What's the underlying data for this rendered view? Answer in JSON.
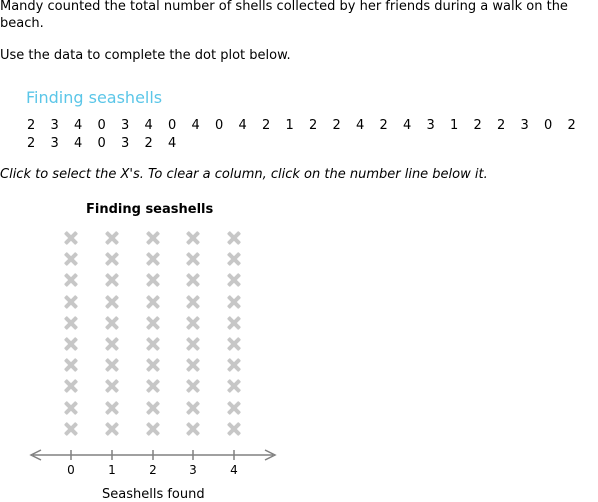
{
  "question": {
    "intro": "Mandy counted the total number of shells collected by her friends during a walk on the beach.",
    "instruction": "Use the data to complete the dot plot below."
  },
  "data_table": {
    "title": "Finding seashells",
    "rows": [
      [
        "2",
        "3",
        "4",
        "0",
        "3",
        "4",
        "0",
        "4",
        "0",
        "4",
        "2",
        "1",
        "2",
        "2",
        "4",
        "2",
        "4",
        "3",
        "1",
        "2",
        "2",
        "3",
        "0",
        "2"
      ],
      [
        "2",
        "3",
        "4",
        "0",
        "3",
        "2",
        "4"
      ]
    ]
  },
  "hint": "Click to select the X's. To clear a column, click on the number line below it.",
  "dot_plot": {
    "title": "Finding seashells",
    "axis_label": "Seashells found",
    "ticks": [
      "0",
      "1",
      "2",
      "3",
      "4"
    ],
    "x_marks_per_column": 10,
    "selected_per_column": [
      0,
      0,
      0,
      0,
      0
    ],
    "colors": {
      "unselected_x": "#c7c7c7",
      "axis": "#808080",
      "title_accent": "#5bc6e8"
    }
  }
}
